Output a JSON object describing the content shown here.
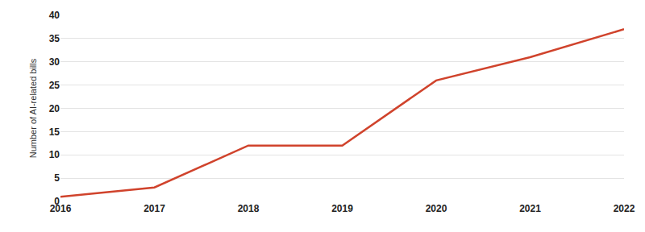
{
  "chart_data": {
    "type": "line",
    "y_label": "Number of AI-related bills",
    "categories": [
      "2016",
      "2017",
      "2018",
      "2019",
      "2020",
      "2021",
      "2022"
    ],
    "values": [
      1,
      3,
      12,
      12,
      26,
      31,
      37
    ],
    "color": "#d0432c",
    "ylim": [
      0,
      40
    ],
    "yticks": [
      0,
      5,
      10,
      15,
      20,
      25,
      30,
      35,
      40
    ],
    "grid": true
  }
}
